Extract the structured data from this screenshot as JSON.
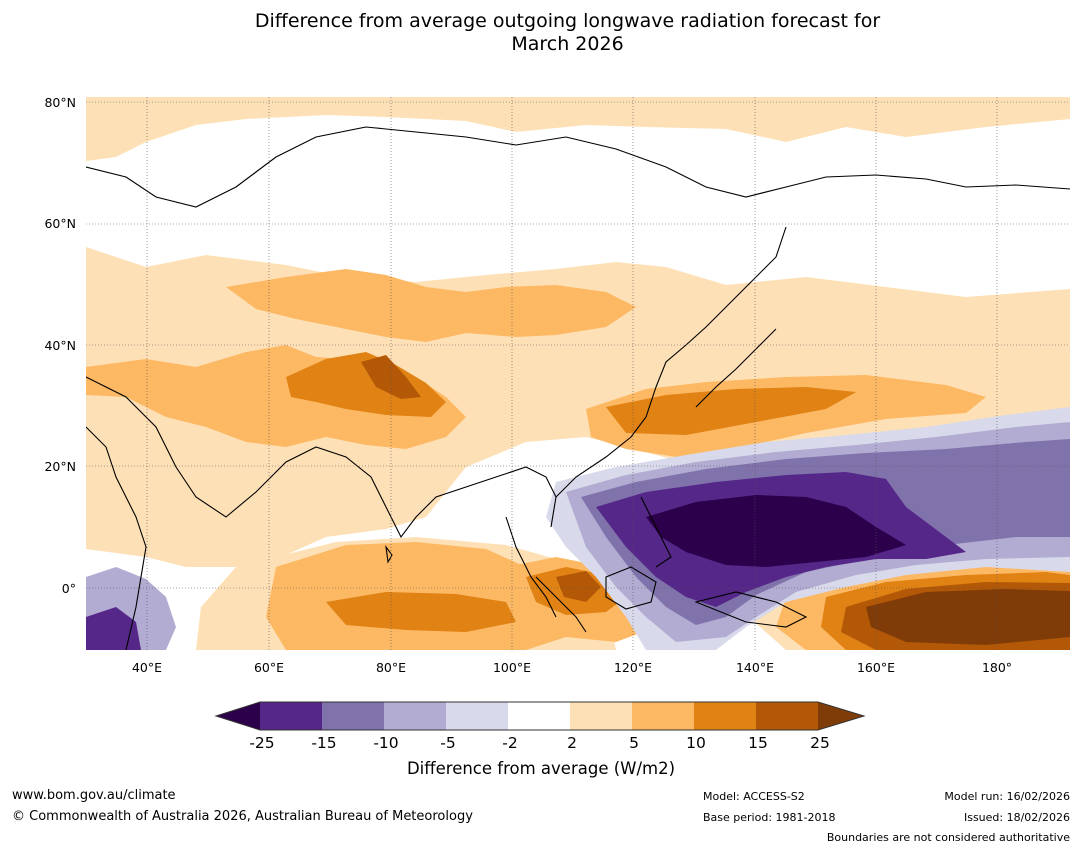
{
  "title_line1": "Difference from average outgoing longwave radiation forecast for",
  "title_line2": "March 2026",
  "lat_labels": [
    "80°N",
    "60°N",
    "40°N",
    "20°N",
    "0°"
  ],
  "lon_labels": [
    "40°E",
    "60°E",
    "80°E",
    "100°E",
    "120°E",
    "140°E",
    "160°E",
    "180°"
  ],
  "colorbar": {
    "ticks": [
      "-25",
      "-15",
      "-10",
      "-5",
      "-2",
      "2",
      "5",
      "10",
      "15",
      "25"
    ],
    "colors": [
      "#2d004b",
      "#542788",
      "#8073ac",
      "#b2abd2",
      "#d8daeb",
      "#ffffff",
      "#fee0b6",
      "#fdb863",
      "#e08214",
      "#b35806",
      "#7f3b08"
    ],
    "label": "Difference from average (W/m2)"
  },
  "footer": {
    "url": "www.bom.gov.au/climate",
    "copyright": "© Commonwealth of Australia 2026, Australian Bureau of Meteorology",
    "model": "Model: ACCESS-S2",
    "base_period": "Base period: 1981-2018",
    "model_run": "Model run: 16/02/2026",
    "issued": "Issued: 18/02/2026",
    "disclaimer": "Boundaries are not considered authoritative"
  }
}
